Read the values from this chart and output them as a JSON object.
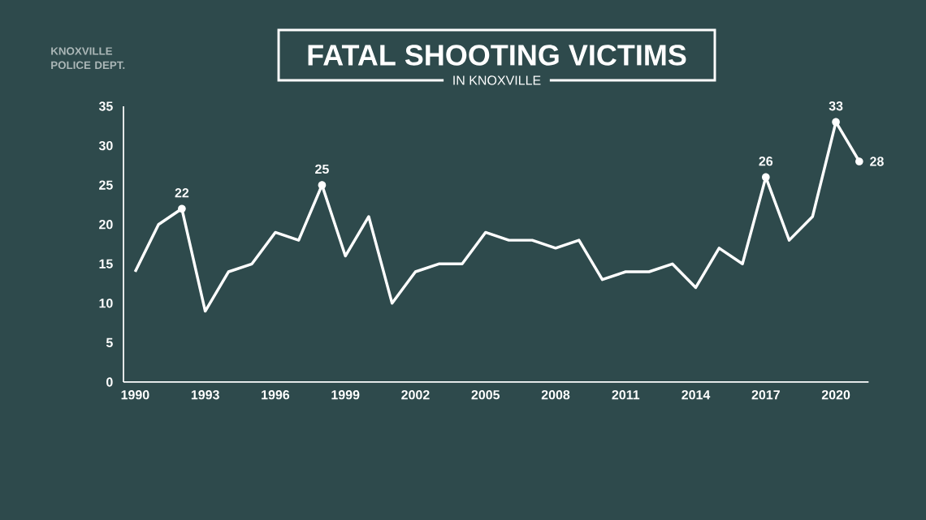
{
  "chart_data": {
    "type": "line",
    "title": "FATAL SHOOTING VICTIMS",
    "subtitle": "IN KNOXVILLE",
    "annotations": [
      "KNOXVILLE POLICE DEPT."
    ],
    "x": [
      1990,
      1991,
      1992,
      1993,
      1994,
      1995,
      1996,
      1997,
      1998,
      1999,
      2000,
      2001,
      2002,
      2003,
      2004,
      2005,
      2006,
      2007,
      2008,
      2009,
      2010,
      2011,
      2012,
      2013,
      2014,
      2015,
      2016,
      2017,
      2018,
      2019,
      2020,
      2021
    ],
    "series": [
      {
        "color": "#ffffff",
        "values": [
          14,
          20,
          22,
          9,
          14,
          15,
          19,
          18,
          25,
          16,
          21,
          10,
          14,
          15,
          15,
          19,
          18,
          18,
          17,
          18,
          13,
          14,
          14,
          15,
          12,
          17,
          15,
          26,
          18,
          21,
          33,
          28
        ],
        "value_labels": [
          null,
          null,
          "22",
          null,
          null,
          null,
          null,
          null,
          "25",
          null,
          null,
          null,
          null,
          null,
          null,
          null,
          null,
          null,
          null,
          null,
          null,
          null,
          null,
          null,
          null,
          null,
          null,
          "26",
          null,
          null,
          "33",
          "28"
        ]
      }
    ],
    "xlim": [
      1989.5,
      2021.4
    ],
    "ylim": [
      0,
      35
    ],
    "xticks": [
      1990,
      1993,
      1996,
      1999,
      2002,
      2005,
      2008,
      2011,
      2014,
      2017,
      2020
    ],
    "yticks": [
      0,
      5,
      10,
      15,
      20,
      25,
      30,
      35
    ],
    "line_style": "solid"
  }
}
